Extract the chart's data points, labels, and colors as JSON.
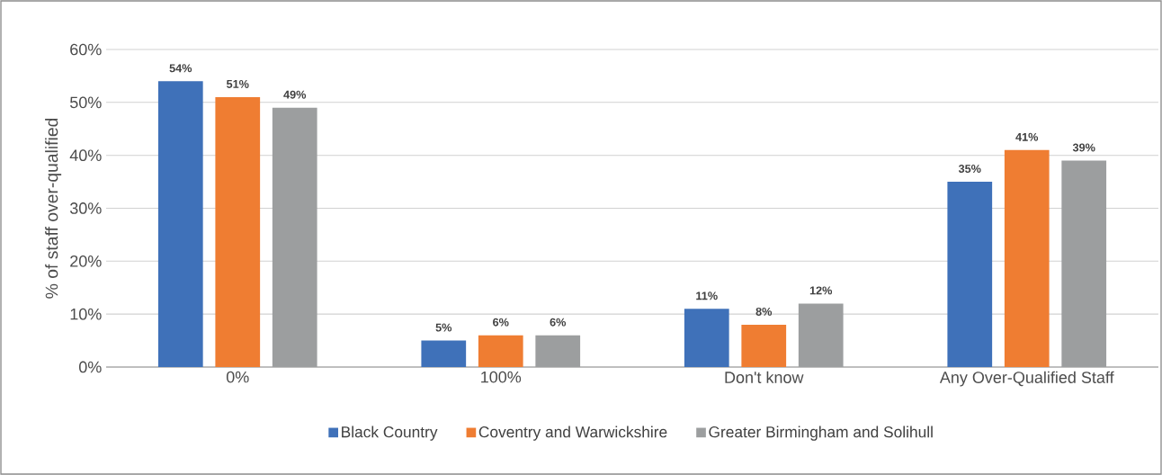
{
  "chart_data": {
    "type": "bar",
    "ylabel": "% of staff over-qualified",
    "categories": [
      "0%",
      "100%",
      "Don't know",
      "Any Over-Qualified Staff"
    ],
    "series": [
      {
        "name": "Black Country",
        "color": "#3f71b9",
        "values": [
          54,
          5,
          11,
          35
        ],
        "value_labels": [
          "54%",
          "5%",
          "11%",
          "35%"
        ]
      },
      {
        "name": "Coventry and Warwickshire",
        "color": "#ef7d32",
        "values": [
          51,
          6,
          8,
          41
        ],
        "value_labels": [
          "51%",
          "6%",
          "8%",
          "41%"
        ]
      },
      {
        "name": "Greater Birmingham and Solihull",
        "color": "#9c9e9f",
        "values": [
          49,
          6,
          12,
          39
        ],
        "value_labels": [
          "49%",
          "6%",
          "12%",
          "39%"
        ]
      }
    ],
    "ylim": [
      0,
      60
    ],
    "yticks": [
      {
        "value": 0,
        "label": "0%"
      },
      {
        "value": 10,
        "label": "10%"
      },
      {
        "value": 20,
        "label": "20%"
      },
      {
        "value": 30,
        "label": "30%"
      },
      {
        "value": 40,
        "label": "40%"
      },
      {
        "value": 50,
        "label": "50%"
      },
      {
        "value": 60,
        "label": "60%"
      }
    ],
    "grid": "y",
    "legend": "bottom"
  }
}
